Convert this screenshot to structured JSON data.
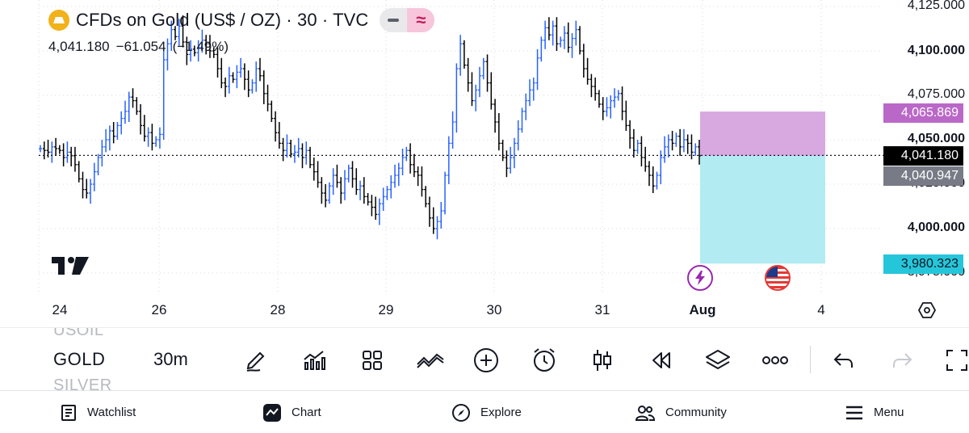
{
  "header": {
    "title": "CFDs on Gold (US$ / OZ) · 30 · TVC",
    "last_price": "4,041.180",
    "change": "−61.054",
    "change_pct": "(−1.49%)"
  },
  "price_axis": {
    "labels": [
      "4,125.000",
      "4,100.000",
      "4,075.000",
      "4,050.000",
      "4,025.000",
      "4,000.000",
      "3,975.000"
    ],
    "tags": {
      "target": "4,065.869",
      "last": "4,041.180",
      "entry": "4,040.947",
      "stop": "3,980.323"
    },
    "colors": {
      "target": "#ba68c8",
      "last": "#000000",
      "entry": "#787b86",
      "stop": "#26c6da"
    }
  },
  "time_axis": {
    "labels": [
      "24",
      "26",
      "28",
      "29",
      "30",
      "31",
      "Aug",
      "4"
    ]
  },
  "chart_data": {
    "type": "ohlc",
    "symbol": "GOLD",
    "interval": "30m",
    "y_range": [
      3965,
      4130
    ],
    "last_price": 4041.18,
    "up_color": "#2962ff",
    "down_color": "#000000",
    "close_path": [
      4045,
      4044,
      4043,
      4046,
      4045,
      4044,
      4040,
      4043,
      4041,
      4036,
      4028,
      4022,
      4020,
      4025,
      4032,
      4040,
      4046,
      4050,
      4055,
      4052,
      4058,
      4062,
      4066,
      4074,
      4072,
      4066,
      4058,
      4052,
      4054,
      4048,
      4050,
      4053,
      4095,
      4104,
      4112,
      4108,
      4114,
      4105,
      4098,
      4101,
      4099,
      4102,
      4106,
      4104,
      4100,
      4098,
      4090,
      4082,
      4080,
      4086,
      4084,
      4088,
      4090,
      4084,
      4078,
      4082,
      4090,
      4086,
      4076,
      4070,
      4062,
      4054,
      4048,
      4044,
      4048,
      4042,
      4043,
      4045,
      4040,
      4044,
      4036,
      4032,
      4026,
      4020,
      4016,
      4024,
      4030,
      4026,
      4020,
      4028,
      4034,
      4028,
      4022,
      4024,
      4018,
      4015,
      4012,
      4008,
      4014,
      4018,
      4022,
      4026,
      4030,
      4034,
      4040,
      4044,
      4036,
      4032,
      4030,
      4022,
      4014,
      4006,
      4000,
      4004,
      4010,
      4030,
      4048,
      4060,
      4090,
      4104,
      4092,
      4082,
      4072,
      4078,
      4086,
      4094,
      4082,
      4070,
      4060,
      4048,
      4040,
      4034,
      4040,
      4048,
      4056,
      4066,
      4072,
      4078,
      4082,
      4096,
      4106,
      4113,
      4109,
      4114,
      4104,
      4106,
      4110,
      4102,
      4107,
      4112,
      4100,
      4090,
      4084,
      4080,
      4076,
      4070,
      4066,
      4068,
      4072,
      4074,
      4076,
      4066,
      4058,
      4051,
      4044,
      4048,
      4040,
      4035,
      4030,
      4024,
      4030,
      4040,
      4046,
      4050,
      4048,
      4052,
      4046,
      4050,
      4048,
      4043,
      4046,
      4041
    ]
  },
  "position_tool": {
    "target": 4065.869,
    "entry": 4040.947,
    "stop": 3980.323,
    "profit_color": "#d8a8e1",
    "loss_color": "#b2ebf2"
  },
  "toolbar": {
    "symbols": [
      "USOIL",
      "GOLD",
      "SILVER"
    ],
    "interval": "30m",
    "tools": [
      "draw-icon",
      "indicators-icon",
      "templates-icon",
      "compare-icon",
      "add-icon",
      "alert-icon",
      "chart-type-icon",
      "replay-icon",
      "layers-icon",
      "more-icon",
      "undo-icon",
      "redo-icon",
      "fullscreen-icon"
    ]
  },
  "bottom_nav": {
    "items": [
      "Watchlist",
      "Chart",
      "Explore",
      "Community",
      "Menu"
    ]
  }
}
